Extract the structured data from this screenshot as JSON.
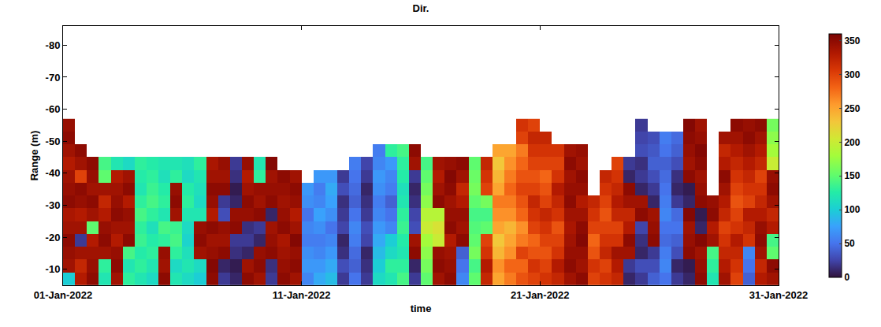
{
  "chart_data": {
    "type": "heatmap",
    "title": "Dir.",
    "x_label": "time",
    "y_label": "Range (m)",
    "x": [
      "2022-01-01 06:00",
      "2022-01-01 18:00",
      "2022-01-02 06:00",
      "2022-01-02 18:00",
      "2022-01-03 06:00",
      "2022-01-03 18:00",
      "2022-01-04 06:00",
      "2022-01-04 18:00",
      "2022-01-05 06:00",
      "2022-01-05 18:00",
      "2022-01-06 06:00",
      "2022-01-06 18:00",
      "2022-01-07 06:00",
      "2022-01-07 18:00",
      "2022-01-08 06:00",
      "2022-01-08 18:00",
      "2022-01-09 06:00",
      "2022-01-09 18:00",
      "2022-01-10 06:00",
      "2022-01-10 18:00",
      "2022-01-11 06:00",
      "2022-01-11 18:00",
      "2022-01-12 06:00",
      "2022-01-12 18:00",
      "2022-01-13 06:00",
      "2022-01-13 18:00",
      "2022-01-14 06:00",
      "2022-01-14 18:00",
      "2022-01-15 06:00",
      "2022-01-15 18:00",
      "2022-01-16 06:00",
      "2022-01-16 18:00",
      "2022-01-17 06:00",
      "2022-01-17 18:00",
      "2022-01-18 06:00",
      "2022-01-18 18:00",
      "2022-01-19 06:00",
      "2022-01-19 18:00",
      "2022-01-20 06:00",
      "2022-01-20 18:00",
      "2022-01-21 06:00",
      "2022-01-21 18:00",
      "2022-01-22 06:00",
      "2022-01-22 18:00",
      "2022-01-23 06:00",
      "2022-01-23 18:00",
      "2022-01-24 06:00",
      "2022-01-24 18:00",
      "2022-01-25 06:00",
      "2022-01-25 18:00",
      "2022-01-26 06:00",
      "2022-01-26 18:00",
      "2022-01-27 06:00",
      "2022-01-27 18:00",
      "2022-01-28 06:00",
      "2022-01-28 18:00",
      "2022-01-29 06:00",
      "2022-01-29 18:00",
      "2022-01-30 06:00",
      "2022-01-30 18:00"
    ],
    "y": [
      -7,
      -11,
      -15,
      -19,
      -23,
      -27,
      -31,
      -35,
      -39,
      -43,
      -47,
      -51,
      -55
    ],
    "z": [
      [
        100,
        340,
        345,
        350,
        340,
        335,
        350,
        345,
        340,
        330,
        340,
        350,
        345
      ],
      [
        330,
        320,
        340,
        20,
        340,
        330,
        345,
        350,
        300,
        340,
        350,
        null,
        null
      ],
      [
        350,
        345,
        340,
        330,
        150,
        340,
        350,
        340,
        345,
        350,
        null,
        null,
        null
      ],
      [
        120,
        130,
        340,
        350,
        345,
        330,
        320,
        340,
        150,
        140,
        null,
        null,
        null
      ],
      [
        340,
        350,
        345,
        330,
        340,
        350,
        345,
        340,
        330,
        120,
        null,
        null,
        null
      ],
      [
        130,
        120,
        140,
        350,
        340,
        345,
        330,
        350,
        340,
        110,
        null,
        null,
        null
      ],
      [
        120,
        130,
        125,
        135,
        130,
        140,
        130,
        120,
        125,
        130,
        null,
        null,
        null
      ],
      [
        110,
        120,
        130,
        125,
        115,
        130,
        140,
        135,
        130,
        125,
        null,
        null,
        null
      ],
      [
        350,
        340,
        345,
        130,
        140,
        120,
        130,
        125,
        115,
        120,
        null,
        null,
        null
      ],
      [
        120,
        110,
        130,
        140,
        135,
        340,
        350,
        345,
        130,
        120,
        null,
        null,
        null
      ],
      [
        110,
        120,
        115,
        105,
        110,
        120,
        130,
        125,
        110,
        115,
        null,
        null,
        null
      ],
      [
        100,
        110,
        340,
        350,
        345,
        120,
        110,
        115,
        120,
        130,
        null,
        null,
        null
      ],
      [
        350,
        355,
        345,
        340,
        350,
        330,
        345,
        350,
        340,
        335,
        null,
        null,
        null
      ],
      [
        20,
        10,
        350,
        340,
        345,
        30,
        20,
        350,
        340,
        345,
        null,
        null,
        null
      ],
      [
        10,
        5,
        15,
        20,
        350,
        345,
        10,
        5,
        15,
        20,
        null,
        null,
        null
      ],
      [
        350,
        340,
        10,
        20,
        15,
        345,
        350,
        340,
        330,
        345,
        null,
        null,
        null
      ],
      [
        340,
        350,
        345,
        10,
        20,
        350,
        340,
        345,
        130,
        120,
        null,
        null,
        null
      ],
      [
        20,
        15,
        350,
        345,
        340,
        10,
        350,
        345,
        340,
        355,
        null,
        null,
        null
      ],
      [
        350,
        345,
        340,
        335,
        350,
        345,
        340,
        345,
        350,
        null,
        null,
        null,
        null
      ],
      [
        340,
        350,
        345,
        355,
        340,
        330,
        345,
        350,
        340,
        null,
        null,
        null,
        null
      ],
      [
        60,
        70,
        65,
        55,
        60,
        50,
        65,
        70,
        null,
        null,
        null,
        null,
        null
      ],
      [
        80,
        70,
        60,
        55,
        65,
        75,
        60,
        55,
        70,
        null,
        null,
        null,
        null
      ],
      [
        90,
        80,
        70,
        60,
        50,
        65,
        75,
        80,
        70,
        null,
        null,
        null,
        null
      ],
      [
        20,
        30,
        15,
        10,
        25,
        20,
        15,
        30,
        20,
        null,
        null,
        null,
        null
      ],
      [
        50,
        40,
        45,
        55,
        60,
        50,
        40,
        45,
        50,
        55,
        null,
        null,
        null
      ],
      [
        20,
        15,
        10,
        25,
        30,
        20,
        15,
        10,
        20,
        25,
        null,
        null,
        null
      ],
      [
        110,
        100,
        90,
        80,
        70,
        60,
        55,
        65,
        70,
        60,
        55,
        null,
        null
      ],
      [
        120,
        130,
        110,
        100,
        60,
        50,
        40,
        55,
        60,
        70,
        130,
        null,
        null
      ],
      [
        140,
        130,
        120,
        125,
        135,
        130,
        120,
        115,
        125,
        130,
        140,
        null,
        null
      ],
      [
        20,
        10,
        350,
        340,
        30,
        25,
        15,
        10,
        20,
        340,
        350,
        null,
        null
      ],
      [
        150,
        160,
        170,
        180,
        200,
        190,
        170,
        160,
        150,
        140,
        null,
        null,
        null
      ],
      [
        340,
        350,
        345,
        200,
        210,
        190,
        350,
        340,
        330,
        340,
        null,
        null,
        null
      ],
      [
        350,
        345,
        340,
        330,
        350,
        345,
        340,
        350,
        355,
        345,
        null,
        null,
        null
      ],
      [
        60,
        50,
        40,
        350,
        340,
        345,
        330,
        320,
        340,
        350,
        null,
        null,
        null
      ],
      [
        150,
        140,
        160,
        150,
        145,
        140,
        150,
        160,
        155,
        150,
        null,
        null,
        null
      ],
      [
        320,
        330,
        310,
        300,
        150,
        140,
        160,
        300,
        310,
        320,
        null,
        null,
        null
      ],
      [
        250,
        260,
        240,
        230,
        250,
        260,
        270,
        250,
        240,
        230,
        250,
        null,
        null
      ],
      [
        270,
        280,
        260,
        250,
        240,
        260,
        270,
        280,
        270,
        260,
        250,
        null,
        null
      ],
      [
        290,
        280,
        300,
        270,
        260,
        280,
        290,
        300,
        290,
        280,
        270,
        300,
        310
      ],
      [
        300,
        310,
        290,
        280,
        300,
        310,
        320,
        300,
        290,
        300,
        310,
        320,
        300
      ],
      [
        310,
        300,
        290,
        300,
        310,
        320,
        300,
        290,
        280,
        300,
        310,
        320,
        null
      ],
      [
        320,
        330,
        310,
        300,
        290,
        310,
        320,
        330,
        310,
        300,
        310,
        null,
        null
      ],
      [
        340,
        350,
        345,
        340,
        335,
        340,
        350,
        345,
        340,
        350,
        340,
        null,
        null
      ],
      [
        350,
        340,
        345,
        355,
        350,
        340,
        330,
        345,
        350,
        340,
        345,
        null,
        null
      ],
      [
        300,
        310,
        290,
        280,
        300,
        310,
        320,
        null,
        null,
        null,
        null,
        null,
        null
      ],
      [
        310,
        300,
        320,
        310,
        300,
        290,
        300,
        310,
        320,
        null,
        null,
        null,
        null
      ],
      [
        320,
        330,
        340,
        310,
        300,
        320,
        330,
        320,
        310,
        300,
        null,
        null,
        null
      ],
      [
        10,
        20,
        340,
        350,
        330,
        320,
        340,
        350,
        10,
        20,
        null,
        null,
        null
      ],
      [
        20,
        30,
        10,
        15,
        25,
        350,
        340,
        10,
        20,
        15,
        30,
        25,
        20
      ],
      [
        40,
        30,
        20,
        350,
        345,
        340,
        10,
        20,
        30,
        40,
        35,
        30,
        null
      ],
      [
        50,
        60,
        55,
        45,
        50,
        60,
        55,
        50,
        45,
        40,
        50,
        55,
        null
      ],
      [
        20,
        10,
        30,
        40,
        50,
        45,
        20,
        10,
        15,
        30,
        40,
        45,
        null
      ],
      [
        10,
        5,
        350,
        345,
        340,
        355,
        10,
        5,
        350,
        340,
        345,
        350,
        355
      ],
      [
        350,
        345,
        340,
        355,
        10,
        5,
        350,
        345,
        340,
        350,
        355,
        345,
        340
      ],
      [
        120,
        130,
        140,
        340,
        330,
        350,
        345,
        null,
        null,
        null,
        null,
        null,
        null
      ],
      [
        340,
        330,
        320,
        310,
        300,
        320,
        330,
        340,
        350,
        330,
        320,
        340,
        null
      ],
      [
        300,
        310,
        320,
        330,
        310,
        300,
        290,
        300,
        310,
        320,
        330,
        340,
        350
      ],
      [
        40,
        50,
        60,
        310,
        320,
        330,
        300,
        310,
        320,
        330,
        340,
        350,
        345
      ],
      [
        330,
        320,
        340,
        350,
        345,
        330,
        320,
        310,
        300,
        320,
        330,
        340,
        350
      ],
      [
        340,
        350,
        150,
        140,
        330,
        320,
        340,
        350,
        345,
        200,
        180,
        170,
        160
      ]
    ],
    "xlim": [
      "2022-01-01",
      "2022-01-31"
    ],
    "xticks": [
      {
        "value": "2022-01-01",
        "label": "01-Jan-2022"
      },
      {
        "value": "2022-01-11",
        "label": "11-Jan-2022"
      },
      {
        "value": "2022-01-21",
        "label": "21-Jan-2022"
      },
      {
        "value": "2022-01-31",
        "label": "31-Jan-2022"
      }
    ],
    "ylim": [
      -5,
      -86
    ],
    "yticks": [
      -80,
      -70,
      -60,
      -50,
      -40,
      -30,
      -20,
      -10
    ],
    "colorbar_range": [
      0,
      360
    ],
    "colorbar_ticks": [
      0,
      50,
      100,
      150,
      200,
      250,
      300,
      350
    ],
    "grid": false
  }
}
